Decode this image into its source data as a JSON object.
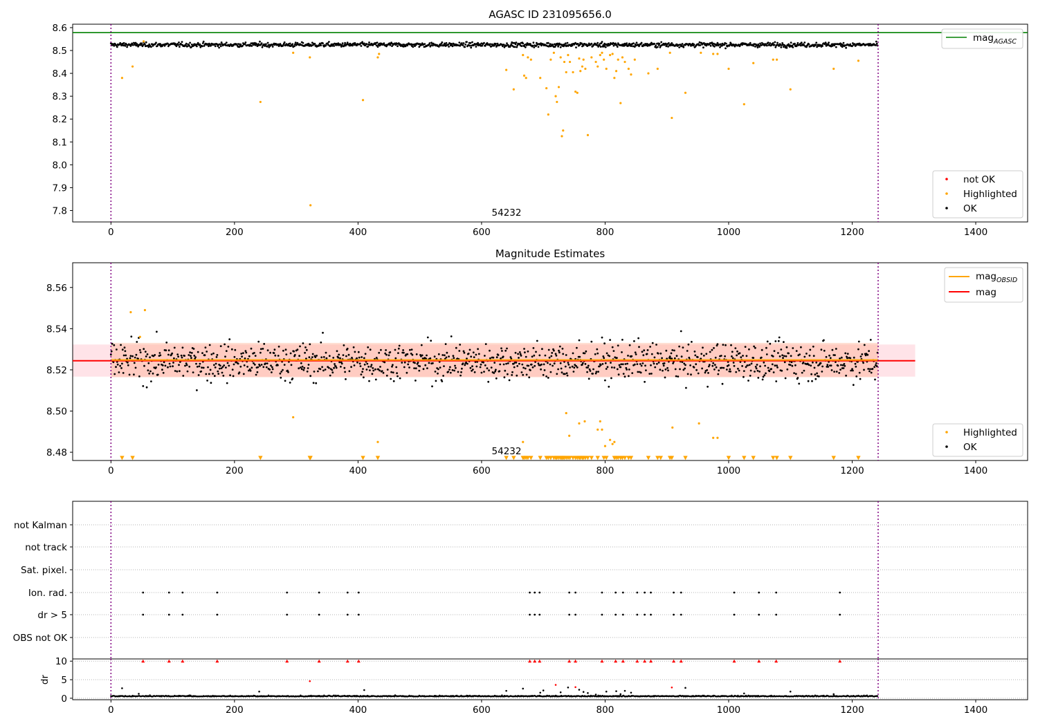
{
  "chart_data": [
    {
      "type": "scatter",
      "title": "AGASC ID 231095656.0",
      "xlim": [
        -62,
        1484
      ],
      "ylim": [
        7.75,
        8.615
      ],
      "xticks": [
        0,
        200,
        400,
        600,
        800,
        1000,
        1200,
        1400
      ],
      "yticks": [
        7.8,
        7.9,
        8.0,
        8.1,
        8.2,
        8.3,
        8.4,
        8.5,
        8.6
      ],
      "annotation": "54232",
      "annotation_x": 615,
      "vlines_x": [
        0,
        1242
      ],
      "hlines": [
        {
          "name": "mag_AGASC",
          "y": 8.578,
          "color": "#008000"
        }
      ],
      "legend_upper": {
        "position": "upper-right",
        "items": [
          {
            "label": "mag",
            "sub": "AGASC",
            "color": "#008000"
          }
        ]
      },
      "legend_lower": {
        "position": "lower-right",
        "items": [
          {
            "label": "not OK",
            "color": "#ff0000"
          },
          {
            "label": "Highlighted",
            "color": "#ffa500"
          },
          {
            "label": "OK",
            "color": "#000000"
          }
        ]
      },
      "series": [
        {
          "name": "OK",
          "color": "#000000",
          "n": 1242,
          "x_range": [
            0,
            1241
          ],
          "y_center": 8.525,
          "y_spread": 0.007
        },
        {
          "name": "Highlighted",
          "color": "#ffa500",
          "x": [
            18,
            35,
            53,
            242,
            295,
            322,
            323,
            408,
            432,
            434,
            640,
            652,
            667,
            669,
            672,
            675,
            680,
            695,
            705,
            708,
            712,
            717,
            720,
            722,
            725,
            728,
            730,
            732,
            734,
            737,
            740,
            743,
            748,
            752,
            755,
            758,
            760,
            763,
            765,
            768,
            772,
            778,
            785,
            788,
            792,
            795,
            798,
            802,
            808,
            812,
            815,
            818,
            821,
            825,
            828,
            832,
            838,
            842,
            848,
            870,
            885,
            905,
            908,
            930,
            955,
            975,
            982,
            1000,
            1025,
            1040,
            1072,
            1078,
            1100,
            1170,
            1210
          ],
          "y": [
            8.38,
            8.43,
            8.54,
            8.275,
            8.49,
            8.47,
            7.823,
            8.283,
            8.47,
            8.485,
            8.415,
            8.33,
            8.48,
            8.39,
            8.38,
            8.47,
            8.46,
            8.38,
            8.335,
            8.22,
            8.46,
            8.49,
            8.3,
            8.275,
            8.34,
            8.47,
            8.125,
            8.15,
            8.45,
            8.405,
            8.48,
            8.45,
            8.405,
            8.32,
            8.315,
            8.465,
            8.41,
            8.43,
            8.46,
            8.42,
            8.13,
            8.47,
            8.45,
            8.43,
            8.48,
            8.49,
            8.46,
            8.42,
            8.48,
            8.485,
            8.38,
            8.41,
            8.46,
            8.27,
            8.47,
            8.45,
            8.42,
            8.395,
            8.46,
            8.4,
            8.42,
            8.49,
            8.205,
            8.315,
            8.49,
            8.485,
            8.485,
            8.42,
            8.265,
            8.445,
            8.46,
            8.46,
            8.33,
            8.42,
            8.455
          ]
        }
      ]
    },
    {
      "type": "scatter",
      "title": "Magnitude Estimates",
      "xlim": [
        -62,
        1484
      ],
      "ylim": [
        8.476,
        8.572
      ],
      "xticks": [
        0,
        200,
        400,
        600,
        800,
        1000,
        1200,
        1400
      ],
      "yticks": [
        8.48,
        8.5,
        8.52,
        8.54,
        8.56
      ],
      "annotation": "54232",
      "annotation_x": 615,
      "vlines_x": [
        0,
        1242
      ],
      "legend_upper": {
        "position": "upper-right",
        "items": [
          {
            "label": "mag",
            "sub": "OBSID",
            "color": "#ffa500"
          },
          {
            "label": "mag",
            "sub": "",
            "color": "#ff0000"
          }
        ]
      },
      "legend_lower": {
        "position": "lower-right",
        "items": [
          {
            "label": "Highlighted",
            "color": "#ffa500"
          },
          {
            "label": "OK",
            "color": "#000000"
          }
        ]
      },
      "hlines": [
        {
          "name": "mag",
          "y": 8.5244,
          "x_range": [
            -62,
            1302
          ],
          "color": "#ff0000"
        },
        {
          "name": "mag_OBSID",
          "y": 8.5248,
          "x_range": [
            0,
            1242
          ],
          "color": "#ffa500"
        }
      ],
      "bands": [
        {
          "name": "mag-band",
          "y_range": [
            8.5167,
            8.5323
          ],
          "x_range": [
            -62,
            1302
          ],
          "color": "#ffc0cb"
        },
        {
          "name": "mag_OBSID-band",
          "y_range": [
            8.5164,
            8.5331
          ],
          "x_range": [
            0,
            1242
          ],
          "color": "#ffa07a"
        }
      ],
      "series": [
        {
          "name": "OK",
          "color": "#000000",
          "n": 1242,
          "x_range": [
            0,
            1241
          ],
          "y_center": 8.524,
          "y_spread": 0.0065
        },
        {
          "name": "Highlighted",
          "color": "#ffa500",
          "x": [
            32,
            47,
            55,
            295,
            432,
            667,
            737,
            742,
            758,
            767,
            788,
            792,
            795,
            800,
            808,
            812,
            815,
            909,
            952,
            975,
            982
          ],
          "y": [
            8.548,
            8.536,
            8.549,
            8.497,
            8.485,
            8.485,
            8.499,
            8.488,
            8.494,
            8.495,
            8.491,
            8.495,
            8.491,
            8.483,
            8.486,
            8.484,
            8.485,
            8.492,
            8.494,
            8.487,
            8.487
          ]
        },
        {
          "name": "Highlighted-below-range",
          "color": "#ffa500",
          "marker": "triangle-down",
          "x": [
            18,
            35,
            242,
            322,
            323,
            408,
            432,
            640,
            652,
            667,
            669,
            672,
            675,
            680,
            695,
            705,
            708,
            712,
            717,
            720,
            722,
            725,
            728,
            730,
            732,
            734,
            737,
            740,
            743,
            748,
            752,
            755,
            758,
            760,
            763,
            765,
            768,
            772,
            778,
            788,
            798,
            802,
            815,
            818,
            821,
            825,
            828,
            832,
            838,
            842,
            870,
            885,
            890,
            905,
            908,
            930,
            1000,
            1025,
            1040,
            1072,
            1078,
            1100,
            1170,
            1210
          ],
          "y_marker": 8.4772
        }
      ]
    },
    {
      "type": "scatter",
      "title": "",
      "xlim": [
        -62,
        1484
      ],
      "flag_rows": [
        "not Kalman",
        "not track",
        "Sat. pixel.",
        "Ion. rad.",
        "dr > 5",
        "OBS not OK"
      ],
      "flag_x": [
        52,
        94,
        116,
        172,
        285,
        337,
        383,
        401,
        678,
        686,
        694,
        742,
        752,
        795,
        817,
        829,
        852,
        864,
        874,
        911,
        923,
        1009,
        1049,
        1077,
        1180
      ],
      "flagged_rows": [
        "Ion. rad.",
        "dr > 5"
      ],
      "dr_panel": {
        "ylabel": "dr",
        "ylim": [
          -0.4,
          10.6
        ],
        "yticks": [
          0,
          5,
          10
        ],
        "xticks": [
          0,
          200,
          400,
          600,
          800,
          1000,
          1200,
          1400
        ],
        "n": 1242,
        "x_range": [
          0,
          1241
        ],
        "y_center": 0.45,
        "clipped_at": 10,
        "clipped_color": "#ff0000",
        "extra_points": [
          {
            "x": 18,
            "y": 2.7,
            "color": "#000000"
          },
          {
            "x": 45,
            "y": 1.2,
            "color": "#000000"
          },
          {
            "x": 240,
            "y": 1.8,
            "color": "#000000"
          },
          {
            "x": 322,
            "y": 4.6,
            "color": "#ff0000"
          },
          {
            "x": 410,
            "y": 2.2,
            "color": "#000000"
          },
          {
            "x": 640,
            "y": 2.0,
            "color": "#000000"
          },
          {
            "x": 667,
            "y": 2.6,
            "color": "#000000"
          },
          {
            "x": 695,
            "y": 1.5,
            "color": "#000000"
          },
          {
            "x": 700,
            "y": 2.1,
            "color": "#000000"
          },
          {
            "x": 720,
            "y": 3.6,
            "color": "#ff0000"
          },
          {
            "x": 728,
            "y": 1.6,
            "color": "#000000"
          },
          {
            "x": 740,
            "y": 2.9,
            "color": "#000000"
          },
          {
            "x": 752,
            "y": 3.0,
            "color": "#ff0000"
          },
          {
            "x": 758,
            "y": 2.3,
            "color": "#000000"
          },
          {
            "x": 765,
            "y": 1.7,
            "color": "#000000"
          },
          {
            "x": 772,
            "y": 1.4,
            "color": "#000000"
          },
          {
            "x": 785,
            "y": 1.0,
            "color": "#000000"
          },
          {
            "x": 802,
            "y": 1.8,
            "color": "#000000"
          },
          {
            "x": 818,
            "y": 1.9,
            "color": "#000000"
          },
          {
            "x": 825,
            "y": 1.1,
            "color": "#000000"
          },
          {
            "x": 832,
            "y": 2.0,
            "color": "#000000"
          },
          {
            "x": 842,
            "y": 1.5,
            "color": "#000000"
          },
          {
            "x": 908,
            "y": 2.9,
            "color": "#ff0000"
          },
          {
            "x": 930,
            "y": 2.8,
            "color": "#000000"
          },
          {
            "x": 1025,
            "y": 1.3,
            "color": "#000000"
          },
          {
            "x": 1100,
            "y": 1.8,
            "color": "#000000"
          },
          {
            "x": 1170,
            "y": 1.1,
            "color": "#000000"
          }
        ]
      }
    }
  ]
}
